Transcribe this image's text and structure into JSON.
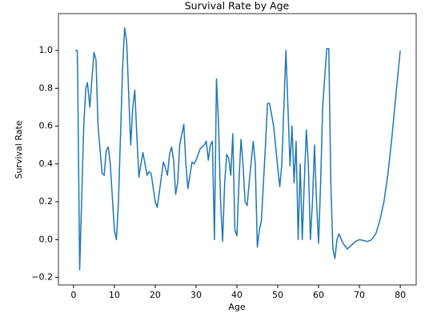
{
  "chart_data": {
    "type": "line",
    "title": "Survival Rate by Age",
    "xlabel": "Age",
    "ylabel": "Survival Rate",
    "x": [
      0.42,
      0.9,
      1,
      1.5,
      2.5,
      3,
      3.4,
      4,
      4.5,
      5,
      5.5,
      6,
      7,
      7.5,
      8,
      8.5,
      9,
      10,
      10.5,
      11,
      12,
      12.5,
      13,
      14,
      14.5,
      15,
      15.5,
      16,
      16.5,
      17,
      17.5,
      18,
      18.5,
      19,
      20,
      20.5,
      21,
      22,
      22.5,
      23,
      23.5,
      24,
      24.5,
      25,
      25.5,
      26,
      27,
      27.5,
      28,
      28.5,
      29,
      29.5,
      30,
      31,
      32,
      32.5,
      33,
      33.5,
      34,
      34.5,
      35,
      35.5,
      36,
      36.5,
      37,
      37.5,
      38,
      38.5,
      39,
      39.5,
      40,
      40.5,
      41,
      41.5,
      42,
      42.5,
      43,
      44,
      44.5,
      45,
      45.5,
      46,
      47,
      47.5,
      48,
      49,
      50,
      50.5,
      51,
      52,
      52.5,
      53,
      53.5,
      54,
      54.5,
      55,
      55.5,
      56,
      56.5,
      57,
      57.5,
      58,
      58.5,
      59,
      59.5,
      60,
      60.5,
      61,
      62,
      62.5,
      63,
      63.5,
      64,
      64.5,
      65,
      66,
      67,
      68,
      69,
      70,
      71,
      72,
      73,
      74,
      75,
      76,
      77,
      78,
      79,
      80
    ],
    "series": [
      {
        "name": "Survival Rate",
        "color": "#1f77b4",
        "values": [
          1.0,
          1.0,
          0.9,
          -0.16,
          0.6,
          0.8,
          0.83,
          0.7,
          0.85,
          0.99,
          0.95,
          0.6,
          0.35,
          0.34,
          0.47,
          0.49,
          0.4,
          0.05,
          0.0,
          0.2,
          0.9,
          1.12,
          1.05,
          0.5,
          0.7,
          0.79,
          0.55,
          0.33,
          0.4,
          0.46,
          0.4,
          0.34,
          0.36,
          0.35,
          0.2,
          0.17,
          0.25,
          0.41,
          0.38,
          0.34,
          0.45,
          0.49,
          0.42,
          0.24,
          0.3,
          0.5,
          0.61,
          0.4,
          0.27,
          0.34,
          0.41,
          0.4,
          0.42,
          0.48,
          0.5,
          0.52,
          0.42,
          0.5,
          0.52,
          0.0,
          0.85,
          0.62,
          0.2,
          -0.01,
          0.3,
          0.45,
          0.43,
          0.34,
          0.56,
          0.05,
          0.02,
          0.3,
          0.53,
          0.4,
          0.2,
          0.18,
          0.3,
          0.52,
          0.4,
          -0.04,
          0.05,
          0.1,
          0.5,
          0.72,
          0.72,
          0.6,
          0.38,
          0.28,
          0.4,
          1.0,
          0.7,
          0.39,
          0.6,
          0.3,
          0.52,
          0.0,
          0.4,
          0.0,
          0.3,
          0.58,
          0.4,
          0.0,
          0.2,
          0.5,
          0.2,
          -0.02,
          0.3,
          0.7,
          1.01,
          1.01,
          0.3,
          -0.05,
          -0.1,
          0.0,
          0.03,
          -0.02,
          -0.05,
          -0.03,
          -0.01,
          0.0,
          -0.005,
          -0.01,
          0.0,
          0.03,
          0.1,
          0.2,
          0.35,
          0.55,
          0.78,
          1.0
        ]
      }
    ],
    "xlim": [
      -3.7,
      83.9
    ],
    "ylim": [
      -0.24,
      1.195
    ],
    "xticks": [
      0,
      10,
      20,
      30,
      40,
      50,
      60,
      70,
      80
    ],
    "yticks": [
      {
        "value": -0.2,
        "label": "−0.2"
      },
      {
        "value": 0,
        "label": "0.0"
      },
      {
        "value": 0.2,
        "label": "0.2"
      },
      {
        "value": 0.4,
        "label": "0.4"
      },
      {
        "value": 0.6,
        "label": "0.6"
      },
      {
        "value": 0.8,
        "label": "0.8"
      },
      {
        "value": 1,
        "label": "1.0"
      }
    ],
    "grid": false
  }
}
